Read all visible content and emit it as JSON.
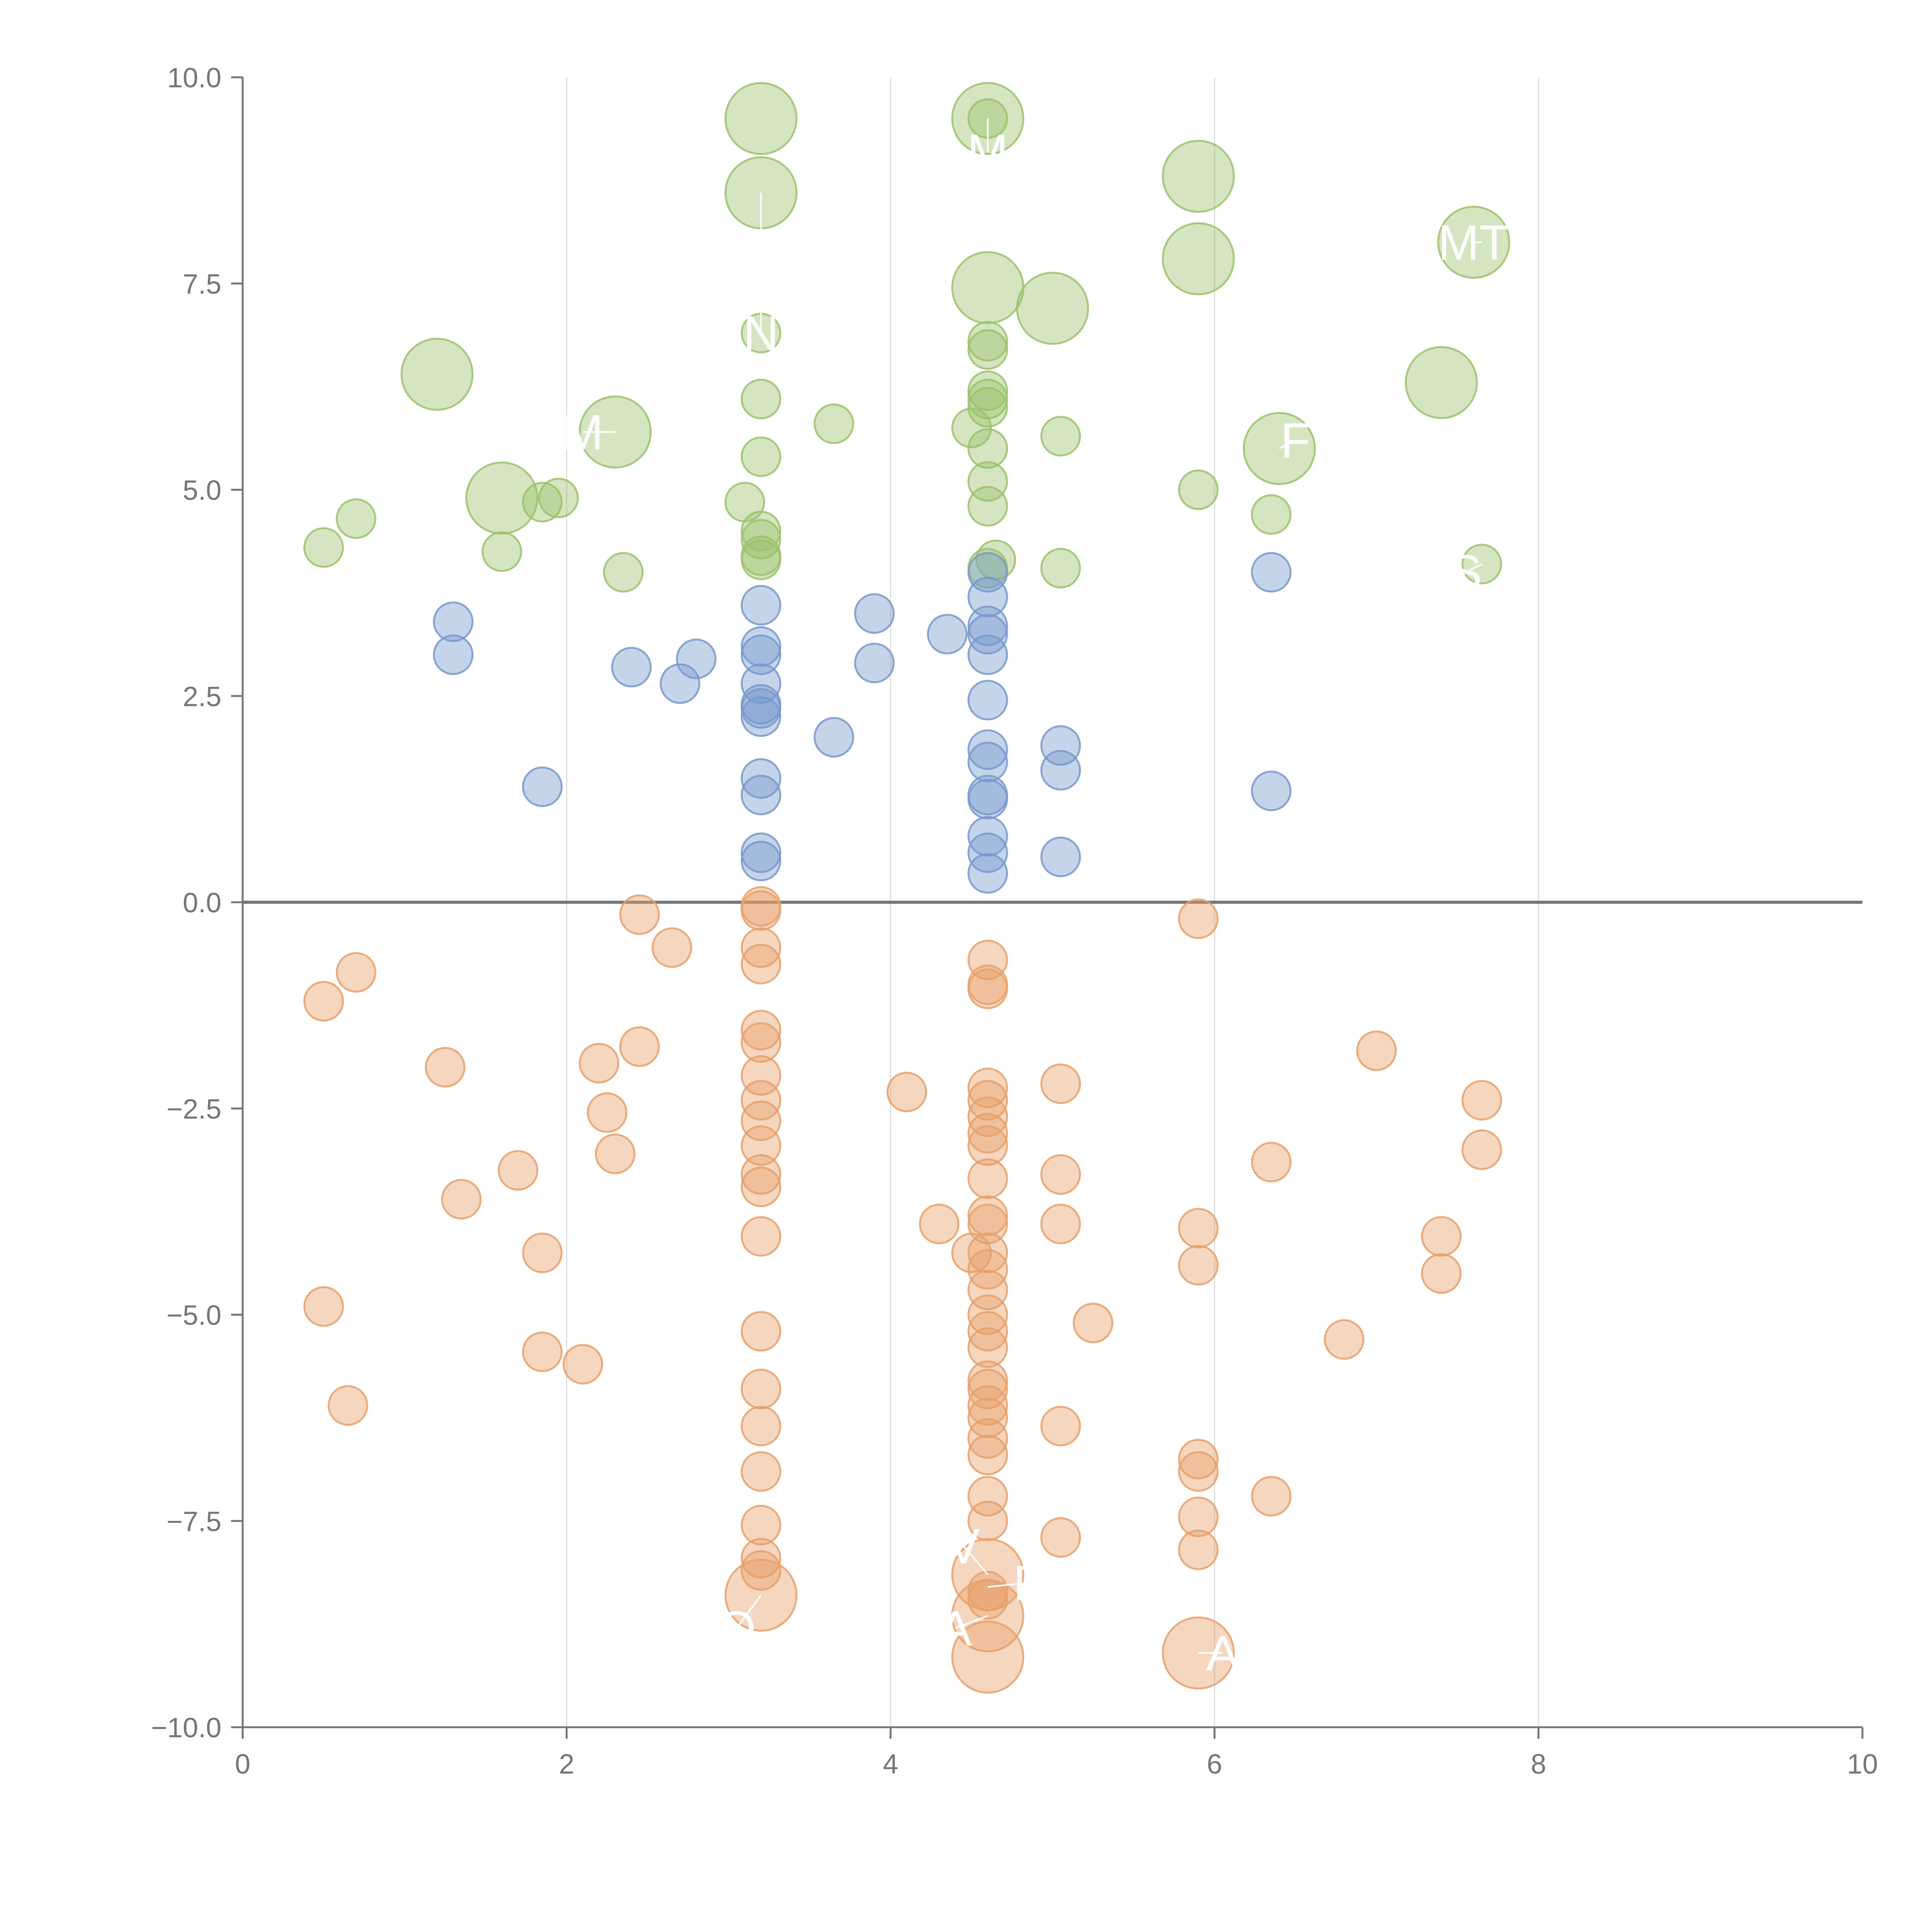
{
  "chart_data": {
    "type": "scatter",
    "title": "",
    "xlabel": "",
    "ylabel": "",
    "xlim": [
      0,
      10
    ],
    "ylim": [
      -10,
      10
    ],
    "x_ticks": [
      "0",
      "2",
      "4",
      "6",
      "8",
      "10"
    ],
    "y_ticks": [
      "−10.0",
      "−7.5",
      "−5.0",
      "−2.5",
      "0.0",
      "2.5",
      "5.0",
      "7.5",
      "10.0"
    ],
    "grid": "vertical",
    "zero_line": true,
    "colors": {
      "green": "#9bc26b",
      "blue": "#7799cc",
      "orange": "#e8a06a",
      "axis": "#767676",
      "grid": "#dddddd",
      "label": "#ffffff"
    },
    "series": [
      {
        "name": "green",
        "points": [
          {
            "x": 3.2,
            "y": 9.5,
            "s": "large"
          },
          {
            "x": 3.2,
            "y": 8.6,
            "s": "large"
          },
          {
            "x": 4.6,
            "y": 9.5,
            "s": "large"
          },
          {
            "x": 4.6,
            "y": 9.5,
            "s": "small"
          },
          {
            "x": 5.9,
            "y": 8.8,
            "s": "large"
          },
          {
            "x": 5.9,
            "y": 7.8,
            "s": "large"
          },
          {
            "x": 7.6,
            "y": 8.0,
            "s": "large"
          },
          {
            "x": 4.6,
            "y": 7.45,
            "s": "large"
          },
          {
            "x": 5.0,
            "y": 7.2,
            "s": "large"
          },
          {
            "x": 1.2,
            "y": 6.4,
            "s": "large"
          },
          {
            "x": 2.3,
            "y": 5.7,
            "s": "large"
          },
          {
            "x": 7.4,
            "y": 6.3,
            "s": "large"
          },
          {
            "x": 6.4,
            "y": 5.5,
            "s": "large"
          },
          {
            "x": 1.6,
            "y": 4.9,
            "s": "large"
          },
          {
            "x": 3.2,
            "y": 6.9,
            "s": "small"
          },
          {
            "x": 3.2,
            "y": 6.1,
            "s": "small"
          },
          {
            "x": 3.2,
            "y": 5.4,
            "s": "small"
          },
          {
            "x": 3.1,
            "y": 4.85,
            "s": "small"
          },
          {
            "x": 3.2,
            "y": 4.5,
            "s": "small"
          },
          {
            "x": 3.2,
            "y": 4.4,
            "s": "small"
          },
          {
            "x": 3.2,
            "y": 4.2,
            "s": "small"
          },
          {
            "x": 3.2,
            "y": 4.15,
            "s": "small"
          },
          {
            "x": 3.65,
            "y": 5.8,
            "s": "small"
          },
          {
            "x": 4.6,
            "y": 6.8,
            "s": "small"
          },
          {
            "x": 4.6,
            "y": 6.7,
            "s": "small"
          },
          {
            "x": 4.6,
            "y": 6.2,
            "s": "small"
          },
          {
            "x": 4.6,
            "y": 6.1,
            "s": "small"
          },
          {
            "x": 4.6,
            "y": 6.0,
            "s": "small"
          },
          {
            "x": 4.5,
            "y": 5.75,
            "s": "small"
          },
          {
            "x": 4.6,
            "y": 5.5,
            "s": "small"
          },
          {
            "x": 4.6,
            "y": 5.1,
            "s": "small"
          },
          {
            "x": 4.6,
            "y": 4.8,
            "s": "small"
          },
          {
            "x": 4.65,
            "y": 4.15,
            "s": "small"
          },
          {
            "x": 4.6,
            "y": 4.05,
            "s": "small"
          },
          {
            "x": 5.05,
            "y": 5.65,
            "s": "small"
          },
          {
            "x": 5.05,
            "y": 4.05,
            "s": "small"
          },
          {
            "x": 5.9,
            "y": 5.0,
            "s": "small"
          },
          {
            "x": 6.35,
            "y": 4.7,
            "s": "small"
          },
          {
            "x": 7.65,
            "y": 4.1,
            "s": "small"
          },
          {
            "x": 0.5,
            "y": 4.3,
            "s": "small"
          },
          {
            "x": 0.7,
            "y": 4.65,
            "s": "small"
          },
          {
            "x": 1.6,
            "y": 4.25,
            "s": "small"
          },
          {
            "x": 1.85,
            "y": 4.85,
            "s": "small"
          },
          {
            "x": 1.95,
            "y": 4.9,
            "s": "small"
          },
          {
            "x": 2.35,
            "y": 4.0,
            "s": "small"
          }
        ]
      },
      {
        "name": "blue",
        "points": [
          {
            "x": 1.3,
            "y": 3.4,
            "s": "small"
          },
          {
            "x": 1.3,
            "y": 3.0,
            "s": "small"
          },
          {
            "x": 1.85,
            "y": 1.4,
            "s": "small"
          },
          {
            "x": 2.4,
            "y": 2.85,
            "s": "small"
          },
          {
            "x": 2.7,
            "y": 2.65,
            "s": "small"
          },
          {
            "x": 2.8,
            "y": 2.95,
            "s": "small"
          },
          {
            "x": 3.2,
            "y": 3.6,
            "s": "small"
          },
          {
            "x": 3.2,
            "y": 3.1,
            "s": "small"
          },
          {
            "x": 3.2,
            "y": 3.0,
            "s": "small"
          },
          {
            "x": 3.2,
            "y": 2.65,
            "s": "small"
          },
          {
            "x": 3.2,
            "y": 2.4,
            "s": "small"
          },
          {
            "x": 3.2,
            "y": 2.35,
            "s": "small"
          },
          {
            "x": 3.2,
            "y": 2.25,
            "s": "small"
          },
          {
            "x": 3.2,
            "y": 1.5,
            "s": "small"
          },
          {
            "x": 3.2,
            "y": 1.3,
            "s": "small"
          },
          {
            "x": 3.2,
            "y": 0.6,
            "s": "small"
          },
          {
            "x": 3.2,
            "y": 0.5,
            "s": "small"
          },
          {
            "x": 3.65,
            "y": 2.0,
            "s": "small"
          },
          {
            "x": 3.9,
            "y": 3.5,
            "s": "small"
          },
          {
            "x": 3.9,
            "y": 2.9,
            "s": "small"
          },
          {
            "x": 4.35,
            "y": 3.25,
            "s": "small"
          },
          {
            "x": 4.6,
            "y": 4.0,
            "s": "small"
          },
          {
            "x": 4.6,
            "y": 3.7,
            "s": "small"
          },
          {
            "x": 4.6,
            "y": 3.35,
            "s": "small"
          },
          {
            "x": 4.6,
            "y": 3.25,
            "s": "small"
          },
          {
            "x": 4.6,
            "y": 3.0,
            "s": "small"
          },
          {
            "x": 4.6,
            "y": 2.45,
            "s": "small"
          },
          {
            "x": 4.6,
            "y": 1.85,
            "s": "small"
          },
          {
            "x": 4.6,
            "y": 1.7,
            "s": "small"
          },
          {
            "x": 4.6,
            "y": 1.3,
            "s": "small"
          },
          {
            "x": 4.6,
            "y": 1.25,
            "s": "small"
          },
          {
            "x": 4.6,
            "y": 0.8,
            "s": "small"
          },
          {
            "x": 4.6,
            "y": 0.6,
            "s": "small"
          },
          {
            "x": 4.6,
            "y": 0.35,
            "s": "small"
          },
          {
            "x": 5.05,
            "y": 1.9,
            "s": "small"
          },
          {
            "x": 5.05,
            "y": 1.6,
            "s": "small"
          },
          {
            "x": 5.05,
            "y": 0.55,
            "s": "small"
          },
          {
            "x": 6.35,
            "y": 4.0,
            "s": "small"
          },
          {
            "x": 6.35,
            "y": 1.35,
            "s": "small"
          }
        ]
      },
      {
        "name": "orange",
        "points": [
          {
            "x": 0.5,
            "y": -1.2,
            "s": "small"
          },
          {
            "x": 0.7,
            "y": -0.85,
            "s": "small"
          },
          {
            "x": 1.25,
            "y": -2.0,
            "s": "small"
          },
          {
            "x": 1.35,
            "y": -3.6,
            "s": "small"
          },
          {
            "x": 1.7,
            "y": -3.25,
            "s": "small"
          },
          {
            "x": 1.85,
            "y": -4.25,
            "s": "small"
          },
          {
            "x": 1.85,
            "y": -5.45,
            "s": "small"
          },
          {
            "x": 0.5,
            "y": -4.9,
            "s": "small"
          },
          {
            "x": 0.65,
            "y": -6.1,
            "s": "small"
          },
          {
            "x": 2.1,
            "y": -5.6,
            "s": "small"
          },
          {
            "x": 2.2,
            "y": -1.95,
            "s": "small"
          },
          {
            "x": 2.25,
            "y": -2.55,
            "s": "small"
          },
          {
            "x": 2.3,
            "y": -3.05,
            "s": "small"
          },
          {
            "x": 2.45,
            "y": -1.75,
            "s": "small"
          },
          {
            "x": 2.45,
            "y": -0.15,
            "s": "small"
          },
          {
            "x": 2.65,
            "y": -0.55,
            "s": "small"
          },
          {
            "x": 3.2,
            "y": -0.05,
            "s": "small"
          },
          {
            "x": 3.2,
            "y": -0.1,
            "s": "small"
          },
          {
            "x": 3.2,
            "y": -0.55,
            "s": "small"
          },
          {
            "x": 3.2,
            "y": -0.75,
            "s": "small"
          },
          {
            "x": 3.2,
            "y": -1.55,
            "s": "small"
          },
          {
            "x": 3.2,
            "y": -1.7,
            "s": "small"
          },
          {
            "x": 3.2,
            "y": -2.1,
            "s": "small"
          },
          {
            "x": 3.2,
            "y": -2.4,
            "s": "small"
          },
          {
            "x": 3.2,
            "y": -2.65,
            "s": "small"
          },
          {
            "x": 3.2,
            "y": -2.95,
            "s": "small"
          },
          {
            "x": 3.2,
            "y": -3.3,
            "s": "small"
          },
          {
            "x": 3.2,
            "y": -3.45,
            "s": "small"
          },
          {
            "x": 3.2,
            "y": -4.05,
            "s": "small"
          },
          {
            "x": 3.2,
            "y": -5.2,
            "s": "small"
          },
          {
            "x": 3.2,
            "y": -5.9,
            "s": "small"
          },
          {
            "x": 3.2,
            "y": -6.35,
            "s": "small"
          },
          {
            "x": 3.2,
            "y": -6.9,
            "s": "small"
          },
          {
            "x": 3.2,
            "y": -7.55,
            "s": "small"
          },
          {
            "x": 3.2,
            "y": -7.95,
            "s": "small"
          },
          {
            "x": 3.2,
            "y": -8.1,
            "s": "small"
          },
          {
            "x": 3.2,
            "y": -8.4,
            "s": "large"
          },
          {
            "x": 4.1,
            "y": -2.3,
            "s": "small"
          },
          {
            "x": 4.3,
            "y": -3.9,
            "s": "small"
          },
          {
            "x": 4.5,
            "y": -4.25,
            "s": "small"
          },
          {
            "x": 4.6,
            "y": -0.7,
            "s": "small"
          },
          {
            "x": 4.6,
            "y": -1.0,
            "s": "small"
          },
          {
            "x": 4.6,
            "y": -1.05,
            "s": "small"
          },
          {
            "x": 4.6,
            "y": -2.25,
            "s": "small"
          },
          {
            "x": 4.6,
            "y": -2.4,
            "s": "small"
          },
          {
            "x": 4.6,
            "y": -2.6,
            "s": "small"
          },
          {
            "x": 4.6,
            "y": -2.8,
            "s": "small"
          },
          {
            "x": 4.6,
            "y": -2.95,
            "s": "small"
          },
          {
            "x": 4.6,
            "y": -3.35,
            "s": "small"
          },
          {
            "x": 4.6,
            "y": -3.8,
            "s": "small"
          },
          {
            "x": 4.6,
            "y": -3.9,
            "s": "small"
          },
          {
            "x": 4.6,
            "y": -4.25,
            "s": "small"
          },
          {
            "x": 4.6,
            "y": -4.45,
            "s": "small"
          },
          {
            "x": 4.6,
            "y": -4.7,
            "s": "small"
          },
          {
            "x": 4.6,
            "y": -5.0,
            "s": "small"
          },
          {
            "x": 4.6,
            "y": -5.2,
            "s": "small"
          },
          {
            "x": 4.6,
            "y": -5.4,
            "s": "small"
          },
          {
            "x": 4.6,
            "y": -5.8,
            "s": "small"
          },
          {
            "x": 4.6,
            "y": -5.9,
            "s": "small"
          },
          {
            "x": 4.6,
            "y": -6.1,
            "s": "small"
          },
          {
            "x": 4.6,
            "y": -6.25,
            "s": "small"
          },
          {
            "x": 4.6,
            "y": -6.5,
            "s": "small"
          },
          {
            "x": 4.6,
            "y": -6.7,
            "s": "small"
          },
          {
            "x": 4.6,
            "y": -7.2,
            "s": "small"
          },
          {
            "x": 4.6,
            "y": -7.5,
            "s": "small"
          },
          {
            "x": 4.6,
            "y": -8.35,
            "s": "small"
          },
          {
            "x": 4.6,
            "y": -8.45,
            "s": "small"
          },
          {
            "x": 4.6,
            "y": -8.15,
            "s": "large"
          },
          {
            "x": 4.6,
            "y": -8.65,
            "s": "large"
          },
          {
            "x": 4.6,
            "y": -9.15,
            "s": "large"
          },
          {
            "x": 5.05,
            "y": -2.2,
            "s": "small"
          },
          {
            "x": 5.05,
            "y": -3.3,
            "s": "small"
          },
          {
            "x": 5.05,
            "y": -3.9,
            "s": "small"
          },
          {
            "x": 5.05,
            "y": -6.35,
            "s": "small"
          },
          {
            "x": 5.05,
            "y": -7.7,
            "s": "small"
          },
          {
            "x": 5.25,
            "y": -5.1,
            "s": "small"
          },
          {
            "x": 5.9,
            "y": -0.2,
            "s": "small"
          },
          {
            "x": 5.9,
            "y": -3.95,
            "s": "small"
          },
          {
            "x": 5.9,
            "y": -4.4,
            "s": "small"
          },
          {
            "x": 5.9,
            "y": -6.75,
            "s": "small"
          },
          {
            "x": 5.9,
            "y": -6.9,
            "s": "small"
          },
          {
            "x": 5.9,
            "y": -7.45,
            "s": "small"
          },
          {
            "x": 5.9,
            "y": -7.85,
            "s": "small"
          },
          {
            "x": 5.9,
            "y": -9.1,
            "s": "large"
          },
          {
            "x": 6.35,
            "y": -3.15,
            "s": "small"
          },
          {
            "x": 6.35,
            "y": -7.2,
            "s": "small"
          },
          {
            "x": 6.8,
            "y": -5.3,
            "s": "small"
          },
          {
            "x": 7.0,
            "y": -1.8,
            "s": "small"
          },
          {
            "x": 7.4,
            "y": -4.05,
            "s": "small"
          },
          {
            "x": 7.4,
            "y": -4.5,
            "s": "small"
          },
          {
            "x": 7.65,
            "y": -2.4,
            "s": "small"
          },
          {
            "x": 7.65,
            "y": -3.0,
            "s": "small"
          }
        ]
      }
    ],
    "annotations": [
      {
        "text": "MT",
        "x": 7.6,
        "y": 8.0,
        "ax": 7.65,
        "ay": 8.0
      },
      {
        "text": "M",
        "x": 4.6,
        "y": 9.1,
        "ax": 4.6,
        "ay": 9.5
      },
      {
        "text": "N",
        "x": 3.2,
        "y": 6.9,
        "ax": 3.2,
        "ay": 8.6
      },
      {
        "text": "M",
        "x": 2.1,
        "y": 5.7,
        "ax": 2.3,
        "ay": 5.7
      },
      {
        "text": "F",
        "x": 6.5,
        "y": 5.6,
        "ax": 6.4,
        "ay": 5.5
      },
      {
        "text": "S",
        "x": 7.55,
        "y": 4.0,
        "ax": 7.65,
        "ay": 4.1
      },
      {
        "text": "V",
        "x": 4.45,
        "y": -7.8,
        "ax": 4.6,
        "ay": -8.15
      },
      {
        "text": "F",
        "x": 4.85,
        "y": -8.25,
        "ax": 4.6,
        "ay": -8.3
      },
      {
        "text": "A",
        "x": 4.4,
        "y": -8.8,
        "ax": 4.6,
        "ay": -8.65
      },
      {
        "text": "O",
        "x": 3.05,
        "y": -8.8,
        "ax": 3.2,
        "ay": -8.4
      },
      {
        "text": "A",
        "x": 6.05,
        "y": -9.1,
        "ax": 5.9,
        "ay": -9.1
      }
    ]
  }
}
